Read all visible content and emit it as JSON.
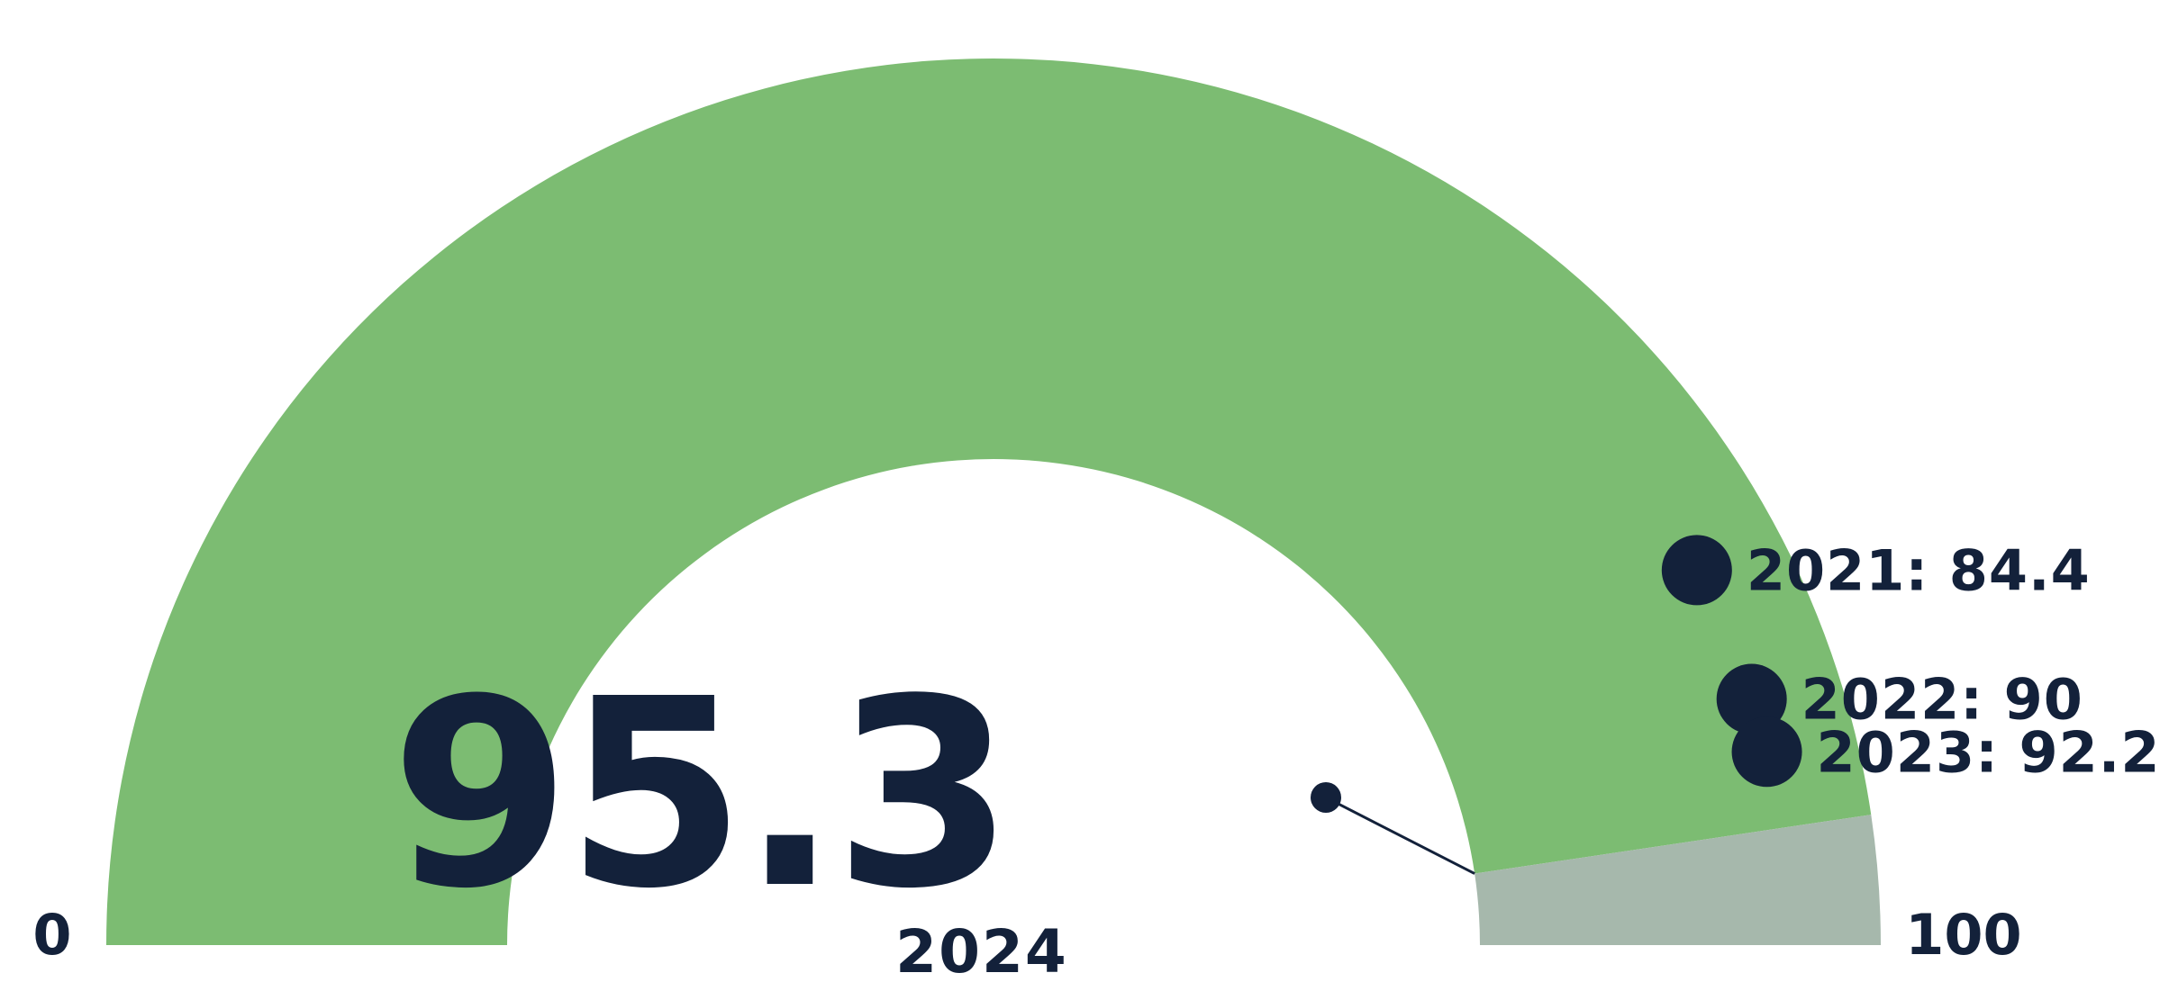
{
  "chart_data": {
    "type": "gauge",
    "min": 0,
    "max": 100,
    "min_label": "0",
    "max_label": "100",
    "value": 95.3,
    "value_label": "95.3",
    "year_label": "2024",
    "history": [
      {
        "year": "2021",
        "value": 84.4,
        "label": "2021: 84.4"
      },
      {
        "year": "2022",
        "value": 90,
        "label": "2022: 90"
      },
      {
        "year": "2023",
        "value": 92.2,
        "label": "2023: 92.2"
      }
    ],
    "colors": {
      "filled_band": "#7cbc72",
      "remaining_band": "#a6b8ac",
      "markers": "#13213a",
      "text": "#13213a"
    }
  }
}
